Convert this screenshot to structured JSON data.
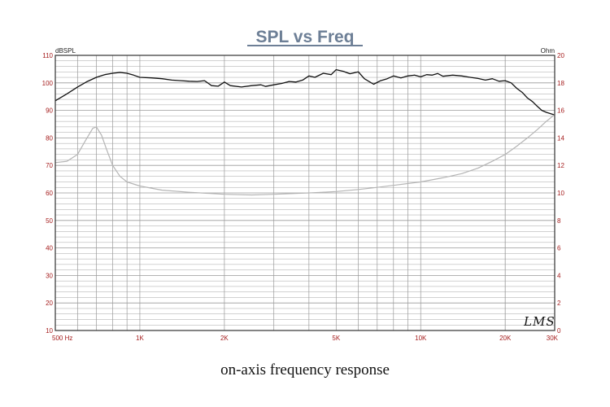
{
  "caption": "on-axis frequency response",
  "chart_data": {
    "type": "line",
    "title": "SPL vs Freq",
    "left_axis_label": "dBSPL",
    "right_axis_label": "Ohm",
    "logo": "LMS",
    "x_scale": "log",
    "xlim": [
      500,
      30000
    ],
    "ylim_left": [
      10,
      110
    ],
    "ylim_right": [
      0,
      20
    ],
    "x_tick_labels": [
      {
        "value": 500,
        "label": "500  Hz"
      },
      {
        "value": 1000,
        "label": "1K"
      },
      {
        "value": 2000,
        "label": "2K"
      },
      {
        "value": 5000,
        "label": "5K"
      },
      {
        "value": 10000,
        "label": "10K"
      },
      {
        "value": 20000,
        "label": "20K"
      },
      {
        "value": 30000,
        "label": "30K"
      }
    ],
    "y_left_ticks": [
      10,
      20,
      30,
      40,
      50,
      60,
      70,
      80,
      90,
      100,
      110
    ],
    "y_right_ticks": [
      0,
      2,
      4,
      6,
      8,
      10,
      12,
      14,
      16,
      18,
      20
    ],
    "grid": true,
    "colors": {
      "title": "#6d7f96",
      "tick_labels": "#a51d1d",
      "grid": "#9a9a9a",
      "frame": "#333333",
      "spl_line": "#111111",
      "impedance_line": "#b4b4b4"
    },
    "series": [
      {
        "id": "spl",
        "axis": "left",
        "points": [
          [
            500,
            93.5
          ],
          [
            550,
            96
          ],
          [
            600,
            98.5
          ],
          [
            650,
            100.5
          ],
          [
            700,
            102
          ],
          [
            750,
            103
          ],
          [
            800,
            103.5
          ],
          [
            850,
            103.8
          ],
          [
            900,
            103.5
          ],
          [
            950,
            102.8
          ],
          [
            1000,
            102
          ],
          [
            1100,
            101.8
          ],
          [
            1200,
            101.5
          ],
          [
            1300,
            101
          ],
          [
            1400,
            100.8
          ],
          [
            1500,
            100.6
          ],
          [
            1600,
            100.5
          ],
          [
            1700,
            100.8
          ],
          [
            1800,
            99
          ],
          [
            1900,
            98.8
          ],
          [
            2000,
            100.3
          ],
          [
            2100,
            99
          ],
          [
            2300,
            98.5
          ],
          [
            2500,
            99
          ],
          [
            2700,
            99.3
          ],
          [
            2800,
            98.7
          ],
          [
            3000,
            99.3
          ],
          [
            3200,
            99.8
          ],
          [
            3400,
            100.5
          ],
          [
            3600,
            100.3
          ],
          [
            3800,
            101
          ],
          [
            4000,
            102.5
          ],
          [
            4200,
            102
          ],
          [
            4500,
            103.5
          ],
          [
            4800,
            103
          ],
          [
            5000,
            104.8
          ],
          [
            5300,
            104.2
          ],
          [
            5600,
            103.3
          ],
          [
            6000,
            104
          ],
          [
            6300,
            101.5
          ],
          [
            6800,
            99.5
          ],
          [
            7200,
            100.8
          ],
          [
            7600,
            101.5
          ],
          [
            8000,
            102.5
          ],
          [
            8500,
            101.8
          ],
          [
            9000,
            102.5
          ],
          [
            9500,
            102.8
          ],
          [
            10000,
            102.2
          ],
          [
            10500,
            103
          ],
          [
            11000,
            102.8
          ],
          [
            11500,
            103.4
          ],
          [
            12000,
            102.4
          ],
          [
            13000,
            102.8
          ],
          [
            14000,
            102.5
          ],
          [
            15000,
            102
          ],
          [
            16000,
            101.6
          ],
          [
            17000,
            101
          ],
          [
            18000,
            101.5
          ],
          [
            19000,
            100.6
          ],
          [
            20000,
            100.8
          ],
          [
            21000,
            100
          ],
          [
            22000,
            98
          ],
          [
            23000,
            96.5
          ],
          [
            24000,
            94.5
          ],
          [
            25000,
            93.2
          ],
          [
            26000,
            91.5
          ],
          [
            27000,
            90
          ],
          [
            28000,
            89.3
          ],
          [
            30000,
            88.3
          ]
        ]
      },
      {
        "id": "impedance",
        "axis": "right",
        "points": [
          [
            500,
            12.2
          ],
          [
            550,
            12.3
          ],
          [
            600,
            12.8
          ],
          [
            640,
            13.8
          ],
          [
            680,
            14.7
          ],
          [
            700,
            14.8
          ],
          [
            730,
            14.2
          ],
          [
            760,
            13.2
          ],
          [
            800,
            12
          ],
          [
            850,
            11.2
          ],
          [
            900,
            10.8
          ],
          [
            1000,
            10.5
          ],
          [
            1200,
            10.2
          ],
          [
            1500,
            10.05
          ],
          [
            2000,
            9.9
          ],
          [
            2500,
            9.85
          ],
          [
            3000,
            9.9
          ],
          [
            4000,
            10
          ],
          [
            5000,
            10.1
          ],
          [
            6000,
            10.25
          ],
          [
            7000,
            10.4
          ],
          [
            8000,
            10.55
          ],
          [
            10000,
            10.8
          ],
          [
            12000,
            11.1
          ],
          [
            14000,
            11.4
          ],
          [
            16000,
            11.8
          ],
          [
            18000,
            12.3
          ],
          [
            20000,
            12.8
          ],
          [
            22000,
            13.4
          ],
          [
            24000,
            14.0
          ],
          [
            26000,
            14.6
          ],
          [
            28000,
            15.2
          ],
          [
            30000,
            15.7
          ]
        ]
      }
    ]
  }
}
